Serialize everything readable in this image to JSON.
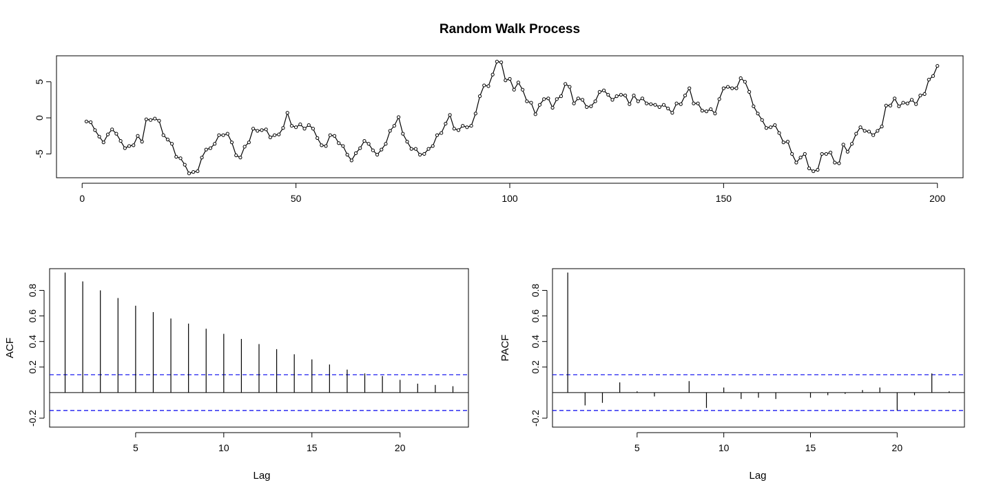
{
  "chart_data": [
    {
      "type": "line",
      "title": "Random Walk Process",
      "xlabel": "",
      "ylabel": "",
      "xlim": [
        -6.0,
        206.0
      ],
      "ylim": [
        -8.3,
        8.6
      ],
      "xticks": [
        0,
        50,
        100,
        150,
        200
      ],
      "yticks": [
        -5,
        0,
        5
      ],
      "grid": false,
      "markers": "open-circle",
      "series": [
        {
          "x": [
            1,
            2,
            3,
            4,
            5,
            6,
            7,
            8,
            9,
            10,
            11,
            12,
            13,
            14,
            15,
            16,
            17,
            18,
            19,
            20,
            21,
            22,
            23,
            24,
            25,
            26,
            27,
            28,
            29,
            30,
            31,
            32,
            33,
            34,
            35,
            36,
            37,
            38,
            39,
            40,
            41,
            42,
            43,
            44,
            45,
            46,
            47,
            48,
            49,
            50,
            51,
            52,
            53,
            54,
            55,
            56,
            57,
            58,
            59,
            60,
            61,
            62,
            63,
            64,
            65,
            66,
            67,
            68,
            69,
            70,
            71,
            72,
            73,
            74,
            75,
            76,
            77,
            78,
            79,
            80,
            81,
            82,
            83,
            84,
            85,
            86,
            87,
            88,
            89,
            90,
            91,
            92,
            93,
            94,
            95,
            96,
            97,
            98,
            99,
            100,
            101,
            102,
            103,
            104,
            105,
            106,
            107,
            108,
            109,
            110,
            111,
            112,
            113,
            114,
            115,
            116,
            117,
            118,
            119,
            120,
            121,
            122,
            123,
            124,
            125,
            126,
            127,
            128,
            129,
            130,
            131,
            132,
            133,
            134,
            135,
            136,
            137,
            138,
            139,
            140,
            141,
            142,
            143,
            144,
            145,
            146,
            147,
            148,
            149,
            150,
            151,
            152,
            153,
            154,
            155,
            156,
            157,
            158,
            159,
            160,
            161,
            162,
            163,
            164,
            165,
            166,
            167,
            168,
            169,
            170,
            171,
            172,
            173,
            174,
            175,
            176,
            177,
            178,
            179,
            180,
            181,
            182,
            183,
            184,
            185,
            186,
            187,
            188,
            189,
            190,
            191,
            192,
            193,
            194,
            195,
            196,
            197,
            198,
            199,
            200
          ],
          "values": [
            -0.5,
            -0.6,
            -1.7,
            -2.6,
            -3.4,
            -2.3,
            -1.6,
            -2.2,
            -3.2,
            -4.2,
            -3.9,
            -3.8,
            -2.5,
            -3.3,
            -0.2,
            -0.3,
            -0.1,
            -0.4,
            -2.4,
            -3.0,
            -3.6,
            -5.4,
            -5.6,
            -6.5,
            -7.7,
            -7.5,
            -7.4,
            -5.5,
            -4.4,
            -4.2,
            -3.6,
            -2.4,
            -2.4,
            -2.2,
            -3.4,
            -5.2,
            -5.5,
            -4.0,
            -3.4,
            -1.5,
            -1.8,
            -1.7,
            -1.6,
            -2.7,
            -2.4,
            -2.3,
            -1.4,
            0.7,
            -1.1,
            -1.3,
            -0.9,
            -1.5,
            -1.0,
            -1.5,
            -2.8,
            -3.8,
            -3.9,
            -2.4,
            -2.5,
            -3.5,
            -3.9,
            -5.1,
            -5.9,
            -4.9,
            -4.2,
            -3.2,
            -3.6,
            -4.5,
            -5.1,
            -4.4,
            -3.6,
            -1.8,
            -1.1,
            0.1,
            -2.2,
            -3.3,
            -4.3,
            -4.3,
            -5.1,
            -5.0,
            -4.3,
            -3.9,
            -2.4,
            -2.1,
            -0.8,
            0.4,
            -1.5,
            -1.7,
            -1.1,
            -1.3,
            -1.1,
            0.6,
            3.0,
            4.5,
            4.4,
            6.0,
            7.8,
            7.7,
            5.2,
            5.4,
            3.9,
            4.9,
            3.9,
            2.3,
            2.1,
            0.5,
            1.8,
            2.6,
            2.7,
            1.4,
            2.6,
            3.0,
            4.7,
            4.3,
            2.0,
            2.7,
            2.5,
            1.5,
            1.6,
            2.3,
            3.6,
            3.8,
            3.2,
            2.5,
            3.0,
            3.2,
            3.1,
            1.9,
            3.1,
            2.3,
            2.7,
            2.0,
            1.9,
            1.8,
            1.5,
            1.8,
            1.3,
            0.7,
            2.0,
            1.9,
            3.1,
            4.1,
            2.0,
            2.0,
            1.0,
            0.9,
            1.2,
            0.6,
            2.6,
            4.1,
            4.3,
            4.1,
            4.1,
            5.5,
            5.0,
            3.6,
            1.6,
            0.6,
            -0.3,
            -1.4,
            -1.3,
            -1.0,
            -2.1,
            -3.4,
            -3.3,
            -5.0,
            -6.2,
            -5.5,
            -5.0,
            -7.0,
            -7.4,
            -7.2,
            -5.0,
            -5.0,
            -4.8,
            -6.2,
            -6.3,
            -3.7,
            -4.7,
            -3.6,
            -2.2,
            -1.3,
            -1.8,
            -1.9,
            -2.4,
            -1.8,
            -1.2,
            1.7,
            1.7,
            2.7,
            1.6,
            2.1,
            2.0,
            2.5,
            1.9,
            3.1,
            3.3,
            5.3,
            5.8,
            7.2
          ]
        }
      ]
    },
    {
      "type": "bar",
      "title": "",
      "xlabel": "Lag",
      "ylabel": "ACF",
      "xlim": [
        0.12,
        23.88
      ],
      "ylim": [
        -0.27,
        0.97
      ],
      "xticks": [
        5,
        10,
        15,
        20
      ],
      "yticks": [
        -0.2,
        0.2,
        0.4,
        0.6,
        0.8
      ],
      "confidence_limits": [
        0.14,
        -0.14
      ],
      "grid": false,
      "categories": [
        1,
        2,
        3,
        4,
        5,
        6,
        7,
        8,
        9,
        10,
        11,
        12,
        13,
        14,
        15,
        16,
        17,
        18,
        19,
        20,
        21,
        22,
        23
      ],
      "values": [
        0.94,
        0.87,
        0.8,
        0.74,
        0.68,
        0.63,
        0.58,
        0.54,
        0.5,
        0.46,
        0.42,
        0.38,
        0.34,
        0.3,
        0.26,
        0.22,
        0.18,
        0.15,
        0.13,
        0.1,
        0.07,
        0.06,
        0.05
      ]
    },
    {
      "type": "bar",
      "title": "",
      "xlabel": "Lag",
      "ylabel": "PACF",
      "xlim": [
        0.12,
        23.88
      ],
      "ylim": [
        -0.27,
        0.97
      ],
      "xticks": [
        5,
        10,
        15,
        20
      ],
      "yticks": [
        -0.2,
        0.2,
        0.4,
        0.6,
        0.8
      ],
      "confidence_limits": [
        0.14,
        -0.14
      ],
      "grid": false,
      "categories": [
        1,
        2,
        3,
        4,
        5,
        6,
        7,
        8,
        9,
        10,
        11,
        12,
        13,
        14,
        15,
        16,
        17,
        18,
        19,
        20,
        21,
        22,
        23
      ],
      "values": [
        0.94,
        -0.1,
        -0.08,
        0.08,
        0.01,
        -0.03,
        0.0,
        0.09,
        -0.12,
        0.04,
        -0.05,
        -0.04,
        -0.05,
        0.0,
        -0.04,
        -0.02,
        -0.01,
        0.02,
        0.04,
        -0.14,
        -0.02,
        0.15,
        0.01
      ]
    }
  ],
  "colors": {
    "series": "#000000",
    "confidence_line": "#0000ee",
    "frame": "#000000",
    "background": "#ffffff"
  }
}
